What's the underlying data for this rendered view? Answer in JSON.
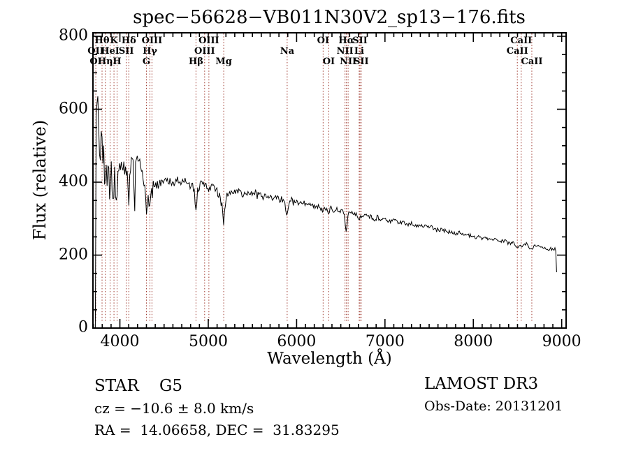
{
  "title": "spec−56628−VB011N30V2_sp13−176.fits",
  "annotations": {
    "class_line": "STAR    G5",
    "cz_line": "cz = −10.6 ± 8.0 km/s",
    "radec_line": "RA =  14.06658, DEC =  31.83295",
    "survey_line": "LAMOST DR3",
    "obsdate_line": "Obs-Date: 20131201"
  },
  "colors": {
    "background": "#ffffff",
    "spectrum": "#000000",
    "frame": "#000000",
    "line_marker": "#9e372c"
  },
  "chart_data": {
    "type": "line",
    "title": "spec−56628−VB011N30V2_sp13−176.fits",
    "xlabel": "Wavelength (Å)",
    "ylabel": "Flux (relative)",
    "xlim": [
      3695,
      9050
    ],
    "ylim": [
      0,
      809
    ],
    "x_major_ticks": [
      4000,
      5000,
      6000,
      7000,
      8000,
      9000
    ],
    "x_minor_step": 100,
    "y_major_ticks": [
      0,
      200,
      400,
      600,
      800
    ],
    "y_minor_step": 50,
    "grid": false,
    "legend": "none",
    "series": [
      {
        "name": "spectrum",
        "points": [
          [
            3722,
            0
          ],
          [
            3724,
            420
          ],
          [
            3726,
            700
          ],
          [
            3728,
            760
          ],
          [
            3731,
            540
          ],
          [
            3734,
            660
          ],
          [
            3738,
            480
          ],
          [
            3742,
            720
          ],
          [
            3746,
            600
          ],
          [
            3750,
            640
          ],
          [
            3755,
            520
          ],
          [
            3760,
            610
          ],
          [
            3766,
            470
          ],
          [
            3772,
            570
          ],
          [
            3778,
            500
          ],
          [
            3785,
            545
          ],
          [
            3792,
            460
          ],
          [
            3800,
            520
          ],
          [
            3808,
            440
          ],
          [
            3816,
            500
          ],
          [
            3824,
            430
          ],
          [
            3832,
            408
          ],
          [
            3840,
            480
          ],
          [
            3848,
            450
          ],
          [
            3856,
            400
          ],
          [
            3864,
            470
          ],
          [
            3872,
            420
          ],
          [
            3880,
            390
          ],
          [
            3889,
            368
          ],
          [
            3898,
            450
          ],
          [
            3908,
            410
          ],
          [
            3918,
            380
          ],
          [
            3928,
            350
          ],
          [
            3933,
            330
          ],
          [
            3940,
            420
          ],
          [
            3950,
            390
          ],
          [
            3960,
            360
          ],
          [
            3968,
            330
          ],
          [
            3976,
            400
          ],
          [
            3985,
            430
          ],
          [
            4000,
            440
          ],
          [
            4015,
            460
          ],
          [
            4030,
            430
          ],
          [
            4045,
            450
          ],
          [
            4060,
            425
          ],
          [
            4075,
            440
          ],
          [
            4090,
            400
          ],
          [
            4101,
            330
          ],
          [
            4112,
            420
          ],
          [
            4125,
            445
          ],
          [
            4140,
            460
          ],
          [
            4155,
            430
          ],
          [
            4165,
            300
          ],
          [
            4175,
            430
          ],
          [
            4190,
            455
          ],
          [
            4205,
            465
          ],
          [
            4220,
            455
          ],
          [
            4235,
            440
          ],
          [
            4250,
            420
          ],
          [
            4265,
            400
          ],
          [
            4280,
            380
          ],
          [
            4295,
            330
          ],
          [
            4305,
            290
          ],
          [
            4315,
            360
          ],
          [
            4330,
            340
          ],
          [
            4345,
            330
          ],
          [
            4360,
            370
          ],
          [
            4380,
            390
          ],
          [
            4400,
            385
          ],
          [
            4425,
            395
          ],
          [
            4450,
            400
          ],
          [
            4480,
            390
          ],
          [
            4510,
            400
          ],
          [
            4540,
            410
          ],
          [
            4570,
            395
          ],
          [
            4600,
            405
          ],
          [
            4630,
            395
          ],
          [
            4660,
            410
          ],
          [
            4690,
            400
          ],
          [
            4720,
            395
          ],
          [
            4750,
            405
          ],
          [
            4780,
            390
          ],
          [
            4810,
            395
          ],
          [
            4840,
            385
          ],
          [
            4861,
            318
          ],
          [
            4880,
            385
          ],
          [
            4900,
            390
          ],
          [
            4925,
            395
          ],
          [
            4950,
            385
          ],
          [
            4975,
            390
          ],
          [
            5000,
            390
          ],
          [
            5030,
            380
          ],
          [
            5060,
            385
          ],
          [
            5090,
            375
          ],
          [
            5120,
            370
          ],
          [
            5150,
            340
          ],
          [
            5175,
            293
          ],
          [
            5200,
            360
          ],
          [
            5230,
            375
          ],
          [
            5260,
            370
          ],
          [
            5290,
            378
          ],
          [
            5320,
            368
          ],
          [
            5350,
            378
          ],
          [
            5380,
            365
          ],
          [
            5410,
            372
          ],
          [
            5440,
            368
          ],
          [
            5470,
            374
          ],
          [
            5500,
            366
          ],
          [
            5530,
            372
          ],
          [
            5560,
            362
          ],
          [
            5590,
            368
          ],
          [
            5620,
            360
          ],
          [
            5650,
            366
          ],
          [
            5680,
            358
          ],
          [
            5710,
            362
          ],
          [
            5740,
            356
          ],
          [
            5770,
            360
          ],
          [
            5800,
            352
          ],
          [
            5830,
            356
          ],
          [
            5860,
            345
          ],
          [
            5893,
            308
          ],
          [
            5915,
            348
          ],
          [
            5940,
            352
          ],
          [
            5970,
            344
          ],
          [
            6000,
            348
          ],
          [
            6040,
            340
          ],
          [
            6080,
            344
          ],
          [
            6120,
            336
          ],
          [
            6160,
            340
          ],
          [
            6200,
            332
          ],
          [
            6240,
            336
          ],
          [
            6280,
            326
          ],
          [
            6300,
            317
          ],
          [
            6320,
            330
          ],
          [
            6364,
            317
          ],
          [
            6390,
            328
          ],
          [
            6420,
            322
          ],
          [
            6450,
            326
          ],
          [
            6480,
            318
          ],
          [
            6510,
            322
          ],
          [
            6540,
            314
          ],
          [
            6563,
            262
          ],
          [
            6585,
            316
          ],
          [
            6610,
            318
          ],
          [
            6640,
            312
          ],
          [
            6670,
            316
          ],
          [
            6700,
            306
          ],
          [
            6731,
            300
          ],
          [
            6760,
            310
          ],
          [
            6800,
            303
          ],
          [
            6840,
            307
          ],
          [
            6880,
            299
          ],
          [
            6920,
            303
          ],
          [
            6960,
            296
          ],
          [
            7000,
            299
          ],
          [
            7050,
            293
          ],
          [
            7100,
            296
          ],
          [
            7150,
            289
          ],
          [
            7200,
            292
          ],
          [
            7250,
            285
          ],
          [
            7300,
            288
          ],
          [
            7350,
            281
          ],
          [
            7400,
            284
          ],
          [
            7450,
            277
          ],
          [
            7500,
            280
          ],
          [
            7550,
            272
          ],
          [
            7600,
            268
          ],
          [
            7650,
            271
          ],
          [
            7700,
            263
          ],
          [
            7750,
            266
          ],
          [
            7800,
            258
          ],
          [
            7850,
            261
          ],
          [
            7900,
            253
          ],
          [
            7950,
            256
          ],
          [
            8000,
            248
          ],
          [
            8050,
            251
          ],
          [
            8100,
            244
          ],
          [
            8150,
            247
          ],
          [
            8200,
            240
          ],
          [
            8250,
            243
          ],
          [
            8300,
            236
          ],
          [
            8350,
            239
          ],
          [
            8400,
            232
          ],
          [
            8450,
            234
          ],
          [
            8498,
            221
          ],
          [
            8520,
            230
          ],
          [
            8542,
            219
          ],
          [
            8570,
            228
          ],
          [
            8600,
            230
          ],
          [
            8630,
            224
          ],
          [
            8662,
            214
          ],
          [
            8690,
            226
          ],
          [
            8720,
            221
          ],
          [
            8750,
            225
          ],
          [
            8780,
            218
          ],
          [
            8820,
            222
          ],
          [
            8850,
            215
          ],
          [
            8880,
            219
          ],
          [
            8910,
            213
          ],
          [
            8928,
            216
          ],
          [
            8940,
            210
          ],
          [
            8944,
            120
          ],
          [
            8947,
            0
          ]
        ],
        "noise_profile": [
          [
            3724,
            3790,
            70
          ],
          [
            3790,
            3975,
            45
          ],
          [
            3975,
            4390,
            27
          ],
          [
            4390,
            5180,
            17
          ],
          [
            5180,
            6000,
            12
          ],
          [
            6000,
            7000,
            9
          ],
          [
            7000,
            8000,
            7
          ],
          [
            8000,
            8940,
            6
          ]
        ]
      }
    ],
    "spectral_line_markers": [
      3727,
      3798,
      3835,
      3889,
      3933,
      3968,
      4072,
      4101,
      4300,
      4340,
      4363,
      4861,
      4959,
      5007,
      5175,
      5893,
      6300,
      6364,
      6548,
      6563,
      6583,
      6708,
      6717,
      6731,
      8498,
      8542,
      8662
    ],
    "line_label_rows": [
      {
        "row": 1,
        "labels": [
          {
            "wl": 3798,
            "text": "Hθ"
          },
          {
            "wl": 3933,
            "text": "K"
          },
          {
            "wl": 4101,
            "text": "Hδ"
          },
          {
            "wl": 4363,
            "text": "OIII"
          },
          {
            "wl": 5007,
            "text": "OIII"
          },
          {
            "wl": 6300,
            "text": "OI"
          },
          {
            "wl": 6563,
            "text": "Hα"
          },
          {
            "wl": 6717,
            "text": "SII"
          },
          {
            "wl": 8542,
            "text": "CaII"
          }
        ]
      },
      {
        "row": 2,
        "labels": [
          {
            "wl": 3727,
            "text": "OII"
          },
          {
            "wl": 3889,
            "text": "HeI"
          },
          {
            "wl": 4072,
            "text": "SII"
          },
          {
            "wl": 4340,
            "text": "Hγ"
          },
          {
            "wl": 4959,
            "text": "OIII"
          },
          {
            "wl": 5893,
            "text": "Na"
          },
          {
            "wl": 6548,
            "text": "NII"
          },
          {
            "wl": 6708,
            "text": "Li"
          },
          {
            "wl": 8498,
            "text": "CaII"
          }
        ]
      },
      {
        "row": 3,
        "labels": [
          {
            "wl": 3727,
            "text": "OI"
          },
          {
            "wl": 3835,
            "text": "Hη"
          },
          {
            "wl": 3968,
            "text": "H"
          },
          {
            "wl": 4300,
            "text": "G"
          },
          {
            "wl": 4861,
            "text": "Hβ"
          },
          {
            "wl": 5175,
            "text": "Mg"
          },
          {
            "wl": 6364,
            "text": "OI"
          },
          {
            "wl": 6583,
            "text": "NII"
          },
          {
            "wl": 6731,
            "text": "SII"
          },
          {
            "wl": 8662,
            "text": "CaII"
          }
        ]
      }
    ]
  }
}
